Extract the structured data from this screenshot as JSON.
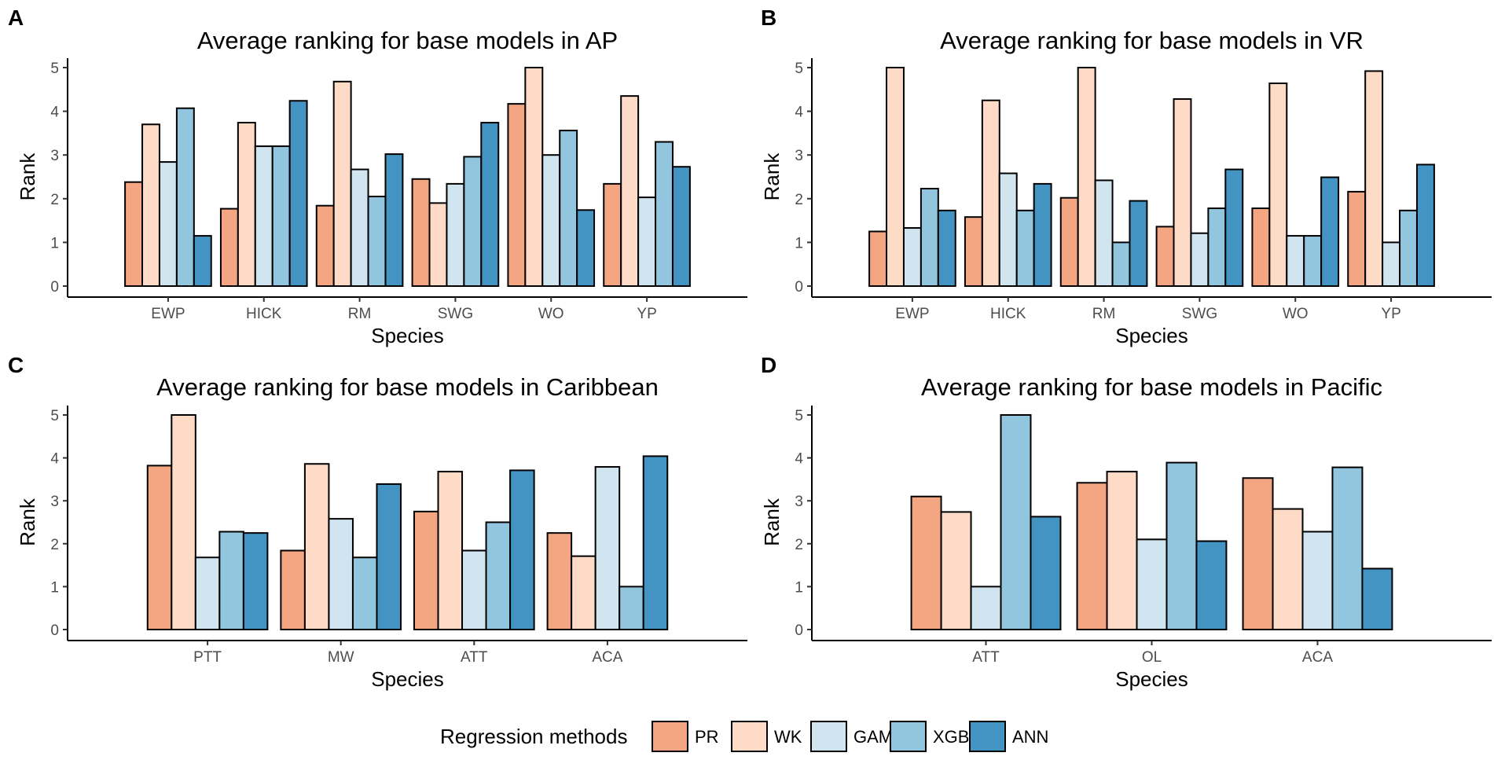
{
  "colors": {
    "PR": "#f4a582",
    "WK": "#fddbc7",
    "GAM": "#d1e5f0",
    "XGB": "#92c5de",
    "ANN": "#4393c3"
  },
  "legend": {
    "title": "Regression methods",
    "items": [
      "PR",
      "WK",
      "GAM",
      "XGB",
      "ANN"
    ]
  },
  "chart_data": [
    {
      "panel": "A",
      "type": "bar",
      "title": "Average ranking for base models in AP",
      "xlabel": "Species",
      "ylabel": "Rank",
      "ylim": [
        0,
        5
      ],
      "yticks": [
        0,
        1,
        2,
        3,
        4,
        5
      ],
      "categories": [
        "EWP",
        "HICK",
        "RM",
        "SWG",
        "WO",
        "YP"
      ],
      "series": [
        {
          "name": "PR",
          "values": [
            2.38,
            1.77,
            1.84,
            2.45,
            4.17,
            2.34
          ]
        },
        {
          "name": "WK",
          "values": [
            3.7,
            3.74,
            4.68,
            1.9,
            5.0,
            4.35
          ]
        },
        {
          "name": "GAM",
          "values": [
            2.84,
            3.2,
            2.67,
            2.34,
            3.0,
            2.03
          ]
        },
        {
          "name": "XGB",
          "values": [
            4.07,
            3.2,
            2.05,
            2.96,
            3.56,
            3.3
          ]
        },
        {
          "name": "ANN",
          "values": [
            1.15,
            4.24,
            3.02,
            3.74,
            1.74,
            2.73
          ]
        }
      ]
    },
    {
      "panel": "B",
      "type": "bar",
      "title": "Average ranking for base models in VR",
      "xlabel": "Species",
      "ylabel": "Rank",
      "ylim": [
        0,
        5
      ],
      "yticks": [
        0,
        1,
        2,
        3,
        4,
        5
      ],
      "categories": [
        "EWP",
        "HICK",
        "RM",
        "SWG",
        "WO",
        "YP"
      ],
      "series": [
        {
          "name": "PR",
          "values": [
            1.25,
            1.58,
            2.02,
            1.36,
            1.78,
            2.16
          ]
        },
        {
          "name": "WK",
          "values": [
            5.0,
            4.25,
            5.0,
            4.28,
            4.64,
            4.92
          ]
        },
        {
          "name": "GAM",
          "values": [
            1.33,
            2.58,
            2.42,
            1.21,
            1.15,
            1.0
          ]
        },
        {
          "name": "XGB",
          "values": [
            2.23,
            1.73,
            1.0,
            1.78,
            1.15,
            1.73
          ]
        },
        {
          "name": "ANN",
          "values": [
            1.73,
            2.34,
            1.95,
            2.67,
            2.49,
            2.78
          ]
        }
      ]
    },
    {
      "panel": "C",
      "type": "bar",
      "title": "Average ranking for base models in Caribbean",
      "xlabel": "Species",
      "ylabel": "Rank",
      "ylim": [
        0,
        5
      ],
      "yticks": [
        0,
        1,
        2,
        3,
        4,
        5
      ],
      "categories": [
        "PTT",
        "MW",
        "ATT",
        "ACA"
      ],
      "series": [
        {
          "name": "PR",
          "values": [
            3.82,
            1.84,
            2.75,
            2.25
          ]
        },
        {
          "name": "WK",
          "values": [
            5.0,
            3.86,
            3.68,
            1.71
          ]
        },
        {
          "name": "GAM",
          "values": [
            1.68,
            2.58,
            1.84,
            3.79
          ]
        },
        {
          "name": "XGB",
          "values": [
            2.28,
            1.68,
            2.5,
            1.0
          ]
        },
        {
          "name": "ANN",
          "values": [
            2.25,
            3.39,
            3.71,
            4.04
          ]
        }
      ]
    },
    {
      "panel": "D",
      "type": "bar",
      "title": "Average ranking for base models in Pacific",
      "xlabel": "Species",
      "ylabel": "Rank",
      "ylim": [
        0,
        5
      ],
      "yticks": [
        0,
        1,
        2,
        3,
        4,
        5
      ],
      "categories": [
        "ATT",
        "OL",
        "ACA"
      ],
      "series": [
        {
          "name": "PR",
          "values": [
            3.1,
            3.42,
            3.53
          ]
        },
        {
          "name": "WK",
          "values": [
            2.74,
            3.68,
            2.81
          ]
        },
        {
          "name": "GAM",
          "values": [
            1.0,
            2.1,
            2.28
          ]
        },
        {
          "name": "XGB",
          "values": [
            5.0,
            3.89,
            3.78
          ]
        },
        {
          "name": "ANN",
          "values": [
            2.63,
            2.06,
            1.42
          ]
        }
      ]
    }
  ]
}
